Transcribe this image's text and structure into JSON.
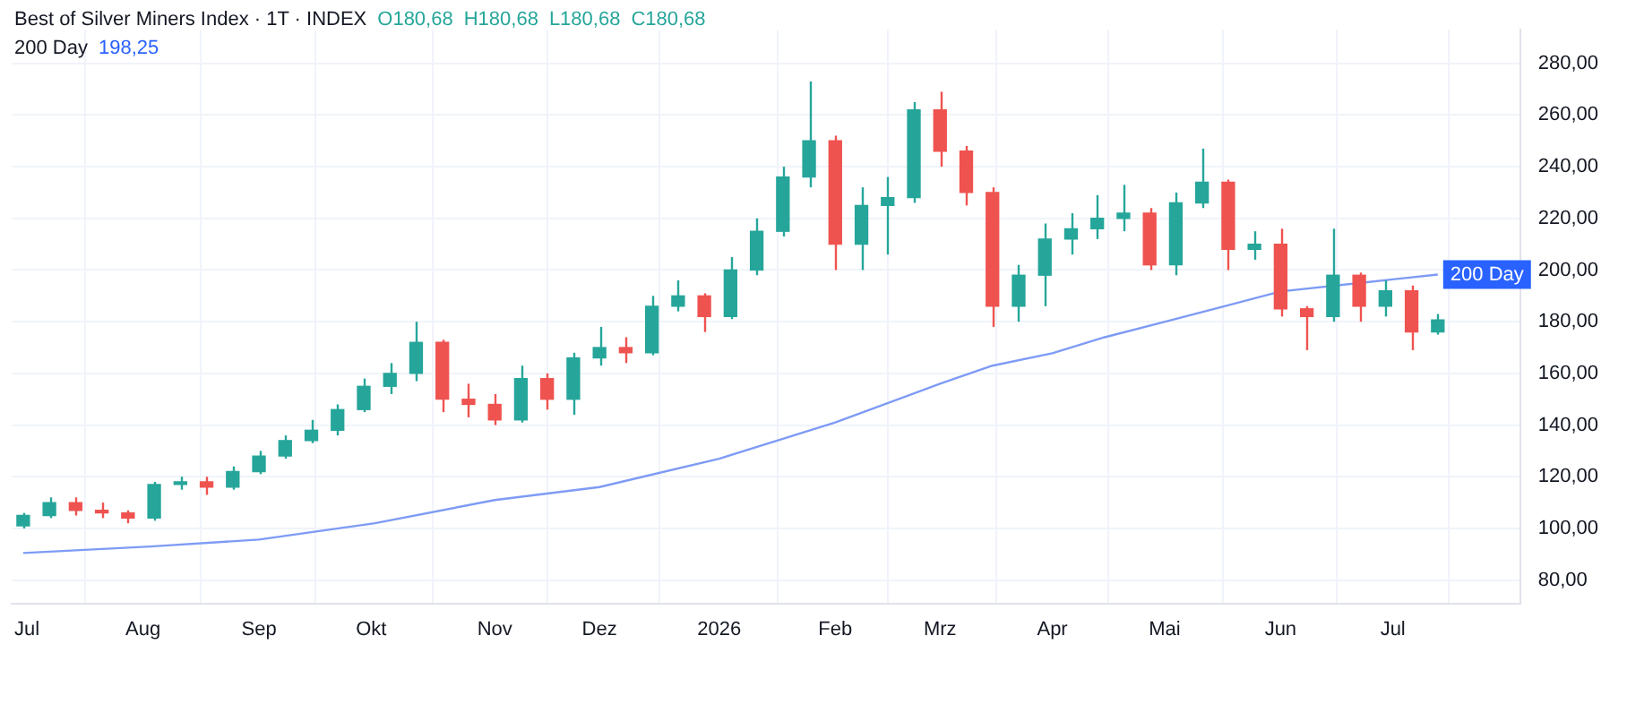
{
  "chart_data": {
    "type": "candlestick",
    "title": "Best of Silver Miners Index · 1T · INDEX",
    "annotations": [
      "O180,68",
      "H180,68",
      "L180,68",
      "C180,68",
      "198,25"
    ],
    "x": [
      "2025-06-30",
      "2025-07-07",
      "2025-07-14",
      "2025-07-21",
      "2025-07-28",
      "2025-08-04",
      "2025-08-11",
      "2025-08-18",
      "2025-08-25",
      "2025-09-01",
      "2025-09-08",
      "2025-09-15",
      "2025-09-22",
      "2025-09-29",
      "2025-10-06",
      "2025-10-13",
      "2025-10-20",
      "2025-10-27",
      "2025-11-03",
      "2025-11-10",
      "2025-11-17",
      "2025-11-24",
      "2025-12-01",
      "2025-12-08",
      "2025-12-15",
      "2025-12-22",
      "2025-12-29",
      "2026-01-05",
      "2026-01-12",
      "2026-01-19",
      "2026-01-26",
      "2026-02-02",
      "2026-02-09",
      "2026-02-16",
      "2026-02-23",
      "2026-03-02",
      "2026-03-09",
      "2026-03-16",
      "2026-03-23",
      "2026-03-30",
      "2026-04-06",
      "2026-04-13",
      "2026-04-20",
      "2026-04-27",
      "2026-05-04",
      "2026-05-11",
      "2026-05-18",
      "2026-05-25",
      "2026-06-01",
      "2026-06-08",
      "2026-06-15",
      "2026-06-22",
      "2026-06-29",
      "2026-07-06",
      "2026-07-13"
    ],
    "ohlc": [
      [
        101,
        106,
        100,
        105
      ],
      [
        105,
        112,
        104,
        110
      ],
      [
        110,
        112,
        105,
        107
      ],
      [
        107,
        110,
        104,
        106
      ],
      [
        106,
        107,
        102,
        104
      ],
      [
        104,
        118,
        103,
        117
      ],
      [
        117,
        120,
        115,
        118
      ],
      [
        118,
        120,
        113,
        116
      ],
      [
        116,
        124,
        115,
        122
      ],
      [
        122,
        130,
        121,
        128
      ],
      [
        128,
        136,
        127,
        134
      ],
      [
        134,
        142,
        133,
        138
      ],
      [
        138,
        148,
        136,
        146
      ],
      [
        146,
        158,
        145,
        155
      ],
      [
        155,
        164,
        152,
        160
      ],
      [
        160,
        180,
        157,
        172
      ],
      [
        172,
        173,
        145,
        150
      ],
      [
        150,
        156,
        143,
        148
      ],
      [
        148,
        152,
        140,
        142
      ],
      [
        142,
        163,
        141,
        158
      ],
      [
        158,
        160,
        146,
        150
      ],
      [
        150,
        168,
        144,
        166
      ],
      [
        166,
        178,
        163,
        170
      ],
      [
        170,
        174,
        164,
        168
      ],
      [
        168,
        190,
        167,
        186
      ],
      [
        186,
        196,
        184,
        190
      ],
      [
        190,
        191,
        176,
        182
      ],
      [
        182,
        205,
        181,
        200
      ],
      [
        200,
        220,
        198,
        215
      ],
      [
        215,
        240,
        213,
        236
      ],
      [
        236,
        273,
        232,
        250
      ],
      [
        250,
        252,
        200,
        210
      ],
      [
        210,
        232,
        200,
        225
      ],
      [
        225,
        236,
        206,
        228
      ],
      [
        228,
        265,
        226,
        262
      ],
      [
        262,
        269,
        240,
        246
      ],
      [
        246,
        248,
        225,
        230
      ],
      [
        230,
        232,
        178,
        186
      ],
      [
        186,
        202,
        180,
        198
      ],
      [
        198,
        218,
        186,
        212
      ],
      [
        212,
        222,
        206,
        216
      ],
      [
        216,
        229,
        212,
        220
      ],
      [
        220,
        233,
        215,
        222
      ],
      [
        222,
        224,
        200,
        202
      ],
      [
        202,
        230,
        198,
        226
      ],
      [
        226,
        247,
        224,
        234
      ],
      [
        234,
        235,
        200,
        208
      ],
      [
        208,
        215,
        204,
        210
      ],
      [
        210,
        216,
        182,
        185
      ],
      [
        185,
        186,
        169,
        182
      ],
      [
        182,
        216,
        180,
        198
      ],
      [
        198,
        199,
        180,
        186
      ],
      [
        186,
        196,
        182,
        192
      ],
      [
        192,
        194,
        169,
        176
      ],
      [
        176,
        183,
        175,
        180.68
      ]
    ],
    "colors": [
      "#26a69a",
      "#26a69a",
      "#ef5350",
      "#ef5350",
      "#ef5350",
      "#26a69a",
      "#26a69a",
      "#ef5350",
      "#26a69a",
      "#26a69a",
      "#26a69a",
      "#26a69a",
      "#26a69a",
      "#26a69a",
      "#26a69a",
      "#26a69a",
      "#ef5350",
      "#ef5350",
      "#ef5350",
      "#26a69a",
      "#ef5350",
      "#26a69a",
      "#26a69a",
      "#ef5350",
      "#26a69a",
      "#26a69a",
      "#ef5350",
      "#26a69a",
      "#26a69a",
      "#26a69a",
      "#26a69a",
      "#ef5350",
      "#26a69a",
      "#26a69a",
      "#26a69a",
      "#ef5350",
      "#ef5350",
      "#ef5350",
      "#26a69a",
      "#26a69a",
      "#26a69a",
      "#26a69a",
      "#26a69a",
      "#ef5350",
      "#26a69a",
      "#26a69a",
      "#ef5350",
      "#26a69a",
      "#ef5350",
      "#ef5350",
      "#26a69a",
      "#ef5350",
      "#26a69a",
      "#ef5350",
      "#26a69a"
    ],
    "series": [
      {
        "name": "200 Day",
        "type": "line",
        "color": "#7e9bf5",
        "x": [
          "2025-06-30",
          "2025-08-03",
          "2025-09-01",
          "2025-10-02",
          "2025-11-03",
          "2025-12-01",
          "2026-01-02",
          "2026-02-02",
          "2026-03-02",
          "2026-03-16",
          "2026-04-01",
          "2026-04-15",
          "2026-05-03",
          "2026-05-17",
          "2026-06-01",
          "2026-07-01",
          "2026-07-13"
        ],
        "values": [
          90.5,
          93,
          95.7,
          102,
          111,
          116,
          127,
          141,
          156,
          163,
          167.8,
          174,
          180.7,
          186,
          191.7,
          196.4,
          198.25
        ]
      }
    ],
    "xlim": [
      "2025-06-27",
      "2026-08-04"
    ],
    "xticks": [
      {
        "value": "2025-07-01",
        "label": "Jul"
      },
      {
        "value": "2025-08-01",
        "label": "Aug"
      },
      {
        "value": "2025-09-01",
        "label": "Sep"
      },
      {
        "value": "2025-10-01",
        "label": "Okt"
      },
      {
        "value": "2025-11-03",
        "label": "Nov"
      },
      {
        "value": "2025-12-01",
        "label": "Dez"
      },
      {
        "value": "2026-01-02",
        "label": "2026"
      },
      {
        "value": "2026-02-02",
        "label": "Feb"
      },
      {
        "value": "2026-03-02",
        "label": "Mrz"
      },
      {
        "value": "2026-04-01",
        "label": "Apr"
      },
      {
        "value": "2026-05-01",
        "label": "Mai"
      },
      {
        "value": "2026-06-01",
        "label": "Jun"
      },
      {
        "value": "2026-07-01",
        "label": "Jul"
      }
    ],
    "ylim": [
      71,
      293
    ],
    "yticks": [
      {
        "value": 80,
        "label": "80,00"
      },
      {
        "value": 100,
        "label": "100,00"
      },
      {
        "value": 120,
        "label": "120,00"
      },
      {
        "value": 140,
        "label": "140,00"
      },
      {
        "value": 160,
        "label": "160,00"
      },
      {
        "value": 180,
        "label": "180,00"
      },
      {
        "value": 200,
        "label": "200,00"
      },
      {
        "value": 220,
        "label": "220,00"
      },
      {
        "value": 240,
        "label": "240,00"
      },
      {
        "value": 260,
        "label": "260,00"
      },
      {
        "value": 280,
        "label": "280,00"
      }
    ],
    "grid": true
  }
}
